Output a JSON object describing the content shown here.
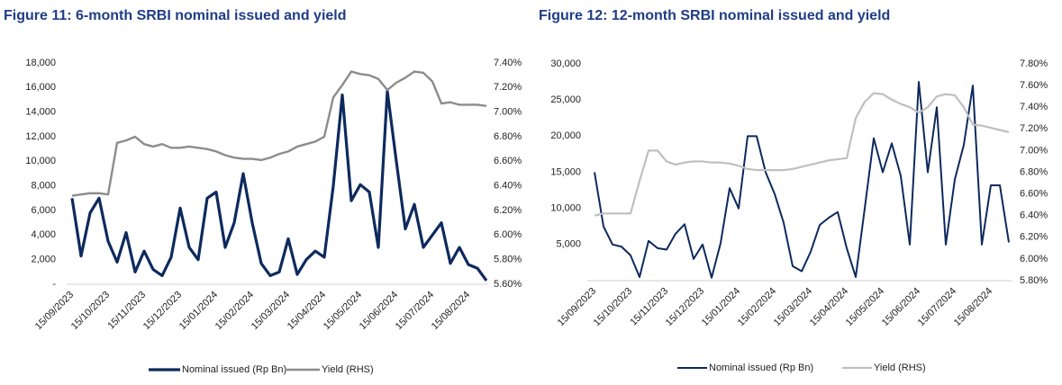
{
  "chart_data": [
    {
      "type": "line",
      "title": "Figure 11: 6-month SRBI nominal issued and yield",
      "categories": [
        "15/09/2023",
        null,
        null,
        null,
        "15/10/2023",
        null,
        null,
        null,
        "15/11/2023",
        null,
        null,
        null,
        "15/12/2023",
        null,
        null,
        null,
        "15/01/2024",
        null,
        null,
        null,
        "15/02/2024",
        null,
        null,
        null,
        "15/03/2024",
        null,
        null,
        null,
        "15/04/2024",
        null,
        null,
        null,
        "15/05/2024",
        null,
        null,
        null,
        "15/06/2024",
        null,
        null,
        null,
        "15/07/2024",
        null,
        null,
        null,
        "15/08/2024",
        null,
        null
      ],
      "series": [
        {
          "name": "Nominal issued (Rp Bn)",
          "color": "#0d2a5e",
          "values": [
            7000,
            2300,
            5800,
            7000,
            3500,
            1800,
            4200,
            1000,
            2700,
            1200,
            700,
            2200,
            6200,
            3000,
            2000,
            7000,
            7500,
            3000,
            5000,
            9000,
            5000,
            1700,
            700,
            1000,
            3700,
            800,
            2000,
            2700,
            2200,
            8000,
            15400,
            6800,
            8100,
            7500,
            3000,
            15700,
            10000,
            4500,
            6500,
            3000,
            4000,
            5000,
            1700,
            3000,
            1600,
            1300,
            300
          ]
        },
        {
          "name": "Yield (RHS)",
          "color": "#8c8c8c",
          "axis": "y2",
          "values": [
            6.32,
            6.33,
            6.34,
            6.34,
            6.33,
            6.75,
            6.77,
            6.8,
            6.74,
            6.72,
            6.74,
            6.71,
            6.71,
            6.72,
            6.71,
            6.7,
            6.68,
            6.65,
            6.63,
            6.62,
            6.62,
            6.61,
            6.63,
            6.66,
            6.68,
            6.72,
            6.74,
            6.76,
            6.8,
            7.12,
            7.22,
            7.33,
            7.31,
            7.3,
            7.27,
            7.18,
            7.24,
            7.28,
            7.33,
            7.32,
            7.25,
            7.07,
            7.08,
            7.06,
            7.06,
            7.06,
            7.05
          ]
        }
      ],
      "ylim": [
        0,
        18000
      ],
      "yticks": [
        {
          "value": 0,
          "label": "-"
        },
        {
          "value": 2000,
          "label": "2,000"
        },
        {
          "value": 4000,
          "label": "4,000"
        },
        {
          "value": 6000,
          "label": "6,000"
        },
        {
          "value": 8000,
          "label": "8,000"
        },
        {
          "value": 10000,
          "label": "10,000"
        },
        {
          "value": 12000,
          "label": "12,000"
        },
        {
          "value": 14000,
          "label": "14,000"
        },
        {
          "value": 16000,
          "label": "16,000"
        },
        {
          "value": 18000,
          "label": "18,000"
        }
      ],
      "y2lim": [
        5.6,
        7.4
      ],
      "y2ticks": [
        {
          "value": 5.6,
          "label": "5.60%"
        },
        {
          "value": 5.8,
          "label": "5.80%"
        },
        {
          "value": 6.0,
          "label": "6.00%"
        },
        {
          "value": 6.2,
          "label": "6.20%"
        },
        {
          "value": 6.4,
          "label": "6.40%"
        },
        {
          "value": 6.6,
          "label": "6.60%"
        },
        {
          "value": 6.8,
          "label": "6.80%"
        },
        {
          "value": 7.0,
          "label": "7.00%"
        },
        {
          "value": 7.2,
          "label": "7.20%"
        },
        {
          "value": 7.4,
          "label": "7.40%"
        }
      ],
      "grid": false,
      "legend": "bottom"
    },
    {
      "type": "line",
      "title": "Figure 12: 12-month SRBI nominal issued and yield",
      "categories": [
        "15/09/2023",
        null,
        null,
        null,
        "15/10/2023",
        null,
        null,
        null,
        "15/11/2023",
        null,
        null,
        null,
        "15/12/2023",
        null,
        null,
        null,
        "15/01/2024",
        null,
        null,
        null,
        "15/02/2024",
        null,
        null,
        null,
        "15/03/2024",
        null,
        null,
        null,
        "15/04/2024",
        null,
        null,
        null,
        "15/05/2024",
        null,
        null,
        null,
        "15/06/2024",
        null,
        null,
        null,
        "15/07/2024",
        null,
        null,
        null,
        "15/08/2024",
        null,
        null
      ],
      "series": [
        {
          "name": "Nominal issued (Rp Bn)",
          "color": "#0d2a5e",
          "values": [
            15000,
            7500,
            5000,
            4700,
            3500,
            500,
            5500,
            4500,
            4300,
            6500,
            7800,
            3000,
            5000,
            400,
            5200,
            12800,
            10000,
            20000,
            20000,
            15000,
            12000,
            8000,
            2000,
            1300,
            4000,
            7700,
            8700,
            9500,
            4500,
            500,
            10000,
            19700,
            15000,
            19000,
            14500,
            5000,
            27500,
            15000,
            24000,
            5000,
            14000,
            18800,
            27000,
            5000,
            13200,
            13200,
            5300
          ]
        },
        {
          "name": "Yield (RHS)",
          "color": "#bfbfbf",
          "axis": "y2",
          "values": [
            6.4,
            6.42,
            6.42,
            6.42,
            6.42,
            6.72,
            7.0,
            7.0,
            6.9,
            6.87,
            6.89,
            6.9,
            6.9,
            6.89,
            6.89,
            6.88,
            6.86,
            6.83,
            6.82,
            6.82,
            6.82,
            6.82,
            6.83,
            6.85,
            6.87,
            6.89,
            6.91,
            6.92,
            6.93,
            7.3,
            7.45,
            7.53,
            7.52,
            7.47,
            7.43,
            7.4,
            7.35,
            7.4,
            7.5,
            7.52,
            7.51,
            7.4,
            7.24,
            7.23,
            7.21,
            7.19,
            7.17
          ]
        }
      ],
      "ylim": [
        0,
        30000
      ],
      "yticks": [
        {
          "value": 5000,
          "label": "5,000"
        },
        {
          "value": 10000,
          "label": "10,000"
        },
        {
          "value": 15000,
          "label": "15,000"
        },
        {
          "value": 20000,
          "label": "20,000"
        },
        {
          "value": 25000,
          "label": "25,000"
        },
        {
          "value": 30000,
          "label": "30,000"
        }
      ],
      "y2lim": [
        5.8,
        7.8
      ],
      "y2ticks": [
        {
          "value": 5.8,
          "label": "5.80%"
        },
        {
          "value": 6.0,
          "label": "6.00%"
        },
        {
          "value": 6.2,
          "label": "6.20%"
        },
        {
          "value": 6.4,
          "label": "6.40%"
        },
        {
          "value": 6.6,
          "label": "6.60%"
        },
        {
          "value": 6.8,
          "label": "6.80%"
        },
        {
          "value": 7.0,
          "label": "7.00%"
        },
        {
          "value": 7.2,
          "label": "7.20%"
        },
        {
          "value": 7.4,
          "label": "7.40%"
        },
        {
          "value": 7.6,
          "label": "7.60%"
        },
        {
          "value": 7.8,
          "label": "7.80%"
        }
      ],
      "grid": false,
      "legend": "bottom"
    }
  ]
}
